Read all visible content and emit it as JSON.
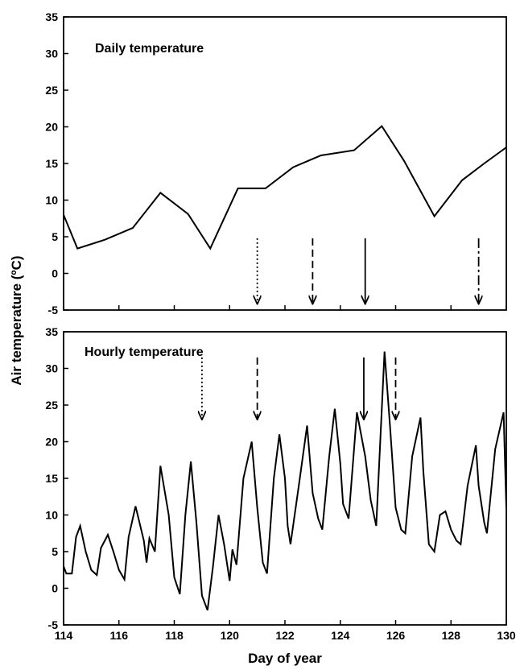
{
  "figure": {
    "ylabel": "Air temperature (ºC)",
    "xlabel": "Day of year"
  },
  "chart_data": [
    {
      "type": "line",
      "title": "Daily temperature",
      "xlabel": "Day of year",
      "ylabel": "Air temperature (ºC)",
      "xlim": [
        114,
        130
      ],
      "ylim": [
        -5,
        35
      ],
      "yticks": [
        -5,
        0,
        5,
        10,
        15,
        20,
        25,
        30,
        35
      ],
      "xticks": [
        114,
        116,
        118,
        120,
        122,
        124,
        126,
        128,
        130
      ],
      "show_xtick_labels": false,
      "grid": false,
      "series": [
        {
          "x": [
            114,
            114.5,
            115.5,
            116.5,
            117.5,
            118.5,
            119.3,
            120.3,
            121.3,
            122.3,
            123.3,
            124.5,
            125.5,
            126.3,
            127.4,
            128.4,
            129.2,
            130
          ],
          "y": [
            8.0,
            3.4,
            4.6,
            6.2,
            11.0,
            8.1,
            3.4,
            11.6,
            11.6,
            14.5,
            16.1,
            16.8,
            20.1,
            15.4,
            7.8,
            12.7,
            15.0,
            17.2
          ]
        }
      ],
      "arrows": [
        {
          "x": 121.0,
          "style": "dotted",
          "from": 4.8,
          "to": -4.2
        },
        {
          "x": 123.0,
          "style": "dashed",
          "from": 4.8,
          "to": -4.2
        },
        {
          "x": 124.9,
          "style": "solid",
          "from": 4.8,
          "to": -4.2
        },
        {
          "x": 129.0,
          "style": "dash-dot",
          "from": 4.8,
          "to": -4.2
        }
      ]
    },
    {
      "type": "line",
      "title": "Hourly temperature",
      "xlabel": "Day of year",
      "ylabel": "Air temperature (ºC)",
      "xlim": [
        114,
        130
      ],
      "ylim": [
        -5,
        35
      ],
      "yticks": [
        -5,
        0,
        5,
        10,
        15,
        20,
        25,
        30,
        35
      ],
      "xticks": [
        114,
        116,
        118,
        120,
        122,
        124,
        126,
        128,
        130
      ],
      "show_xtick_labels": true,
      "grid": false,
      "series": [
        {
          "x": [
            114.0,
            114.1,
            114.3,
            114.45,
            114.6,
            114.8,
            115.0,
            115.2,
            115.35,
            115.6,
            115.8,
            116.0,
            116.2,
            116.35,
            116.6,
            116.9,
            117.0,
            117.1,
            117.3,
            117.5,
            117.8,
            118.0,
            118.2,
            118.4,
            118.6,
            118.8,
            119.0,
            119.2,
            119.4,
            119.6,
            119.8,
            120.0,
            120.1,
            120.25,
            120.5,
            120.8,
            121.0,
            121.2,
            121.35,
            121.6,
            121.8,
            122.0,
            122.1,
            122.2,
            122.5,
            122.8,
            123.0,
            123.2,
            123.35,
            123.6,
            123.8,
            124.0,
            124.1,
            124.3,
            124.6,
            124.9,
            125.1,
            125.3,
            125.6,
            125.8,
            126.0,
            126.2,
            126.35,
            126.6,
            126.9,
            127.0,
            127.2,
            127.4,
            127.6,
            127.8,
            128.0,
            128.2,
            128.35,
            128.6,
            128.9,
            129.0,
            129.2,
            129.3,
            129.6,
            129.9,
            130.0
          ],
          "y": [
            3,
            2,
            2,
            7,
            8.5,
            5,
            2.5,
            1.8,
            5.5,
            7.3,
            5,
            2.5,
            1.2,
            7,
            11.2,
            6.5,
            3.5,
            6.8,
            5,
            16.7,
            10,
            1.5,
            -0.8,
            10,
            17.3,
            9,
            -1,
            -3,
            3,
            10,
            6,
            1,
            5.3,
            3.2,
            15,
            20,
            11,
            3.5,
            2,
            15,
            21,
            15,
            8.5,
            6,
            14,
            22.2,
            13,
            9.5,
            8,
            18,
            24.5,
            17,
            11.5,
            9.5,
            24,
            18,
            12,
            8.5,
            32.3,
            22,
            11,
            8,
            7.5,
            18,
            23.3,
            16,
            6,
            5,
            10,
            10.5,
            8,
            6.5,
            6,
            14,
            19.5,
            14,
            9,
            7.5,
            19,
            24,
            11
          ]
        }
      ],
      "arrows": [
        {
          "x": 119.0,
          "style": "dotted",
          "from": 31.5,
          "to": 23.0
        },
        {
          "x": 121.0,
          "style": "dashed",
          "from": 31.5,
          "to": 23.0
        },
        {
          "x": 124.85,
          "style": "solid",
          "from": 31.5,
          "to": 23.0
        },
        {
          "x": 126.0,
          "style": "dashed",
          "from": 31.5,
          "to": 23.0
        }
      ]
    }
  ]
}
